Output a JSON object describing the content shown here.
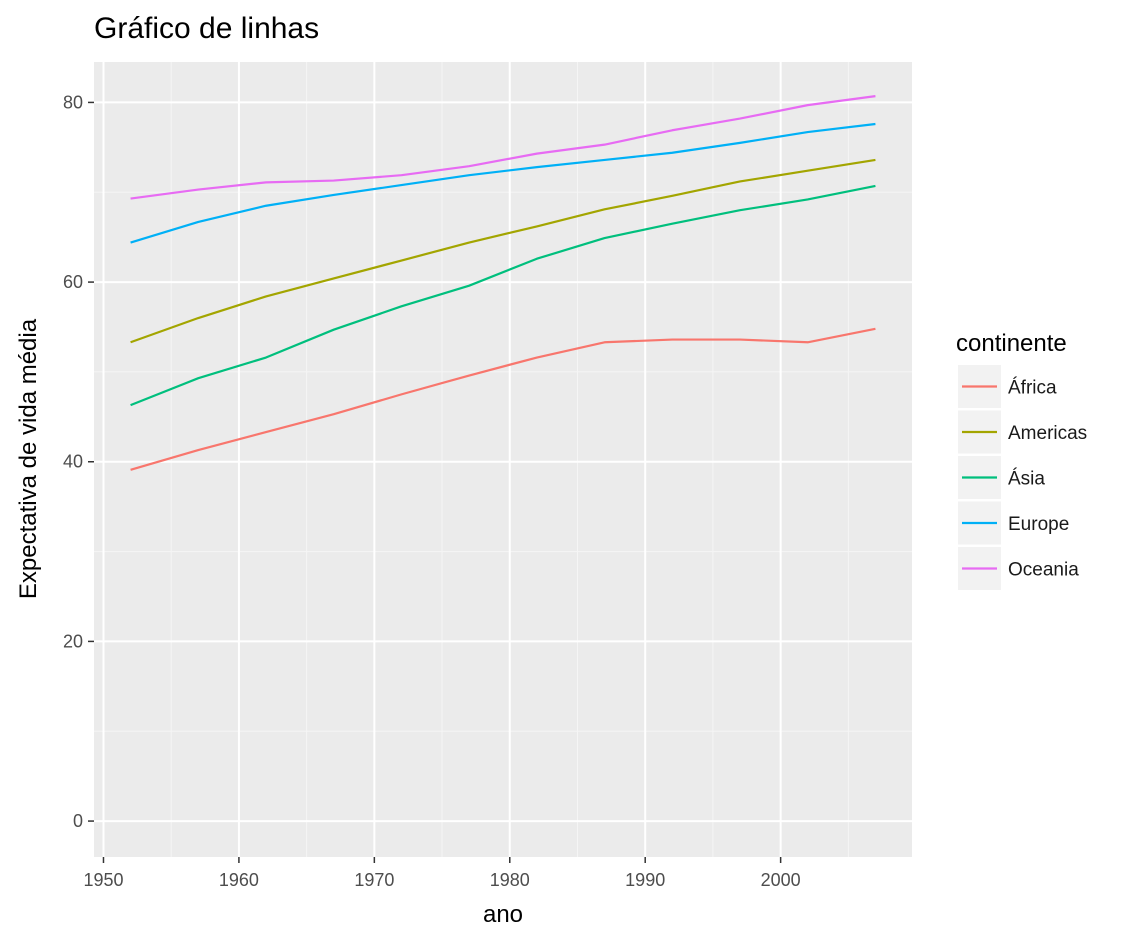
{
  "chart_data": {
    "type": "line",
    "title": "Gráfico de linhas",
    "xlabel": "ano",
    "ylabel": "Expectativa de vida média",
    "x": [
      1952,
      1957,
      1962,
      1967,
      1972,
      1977,
      1982,
      1987,
      1992,
      1997,
      2002,
      2007
    ],
    "xlim": [
      1949.3,
      2009.7
    ],
    "ylim": [
      -4,
      84.5
    ],
    "x_ticks": [
      1950,
      1960,
      1970,
      1980,
      1990,
      2000
    ],
    "x_tick_labels": [
      "1950",
      "1960",
      "1970",
      "1980",
      "1990",
      "2000"
    ],
    "y_ticks": [
      0,
      20,
      40,
      60,
      80
    ],
    "y_tick_labels": [
      "0",
      "20",
      "40",
      "60",
      "80"
    ],
    "grid": true,
    "legend": {
      "title": "continente",
      "position": "right"
    },
    "panel_color": "#ebebeb",
    "series": [
      {
        "name": "África",
        "color": "#f8766d",
        "values": [
          39.1,
          41.3,
          43.3,
          45.3,
          47.5,
          49.6,
          51.6,
          53.3,
          53.6,
          53.6,
          53.3,
          54.8
        ]
      },
      {
        "name": "Americas",
        "color": "#a3a500",
        "values": [
          53.3,
          56.0,
          58.4,
          60.4,
          62.4,
          64.4,
          66.2,
          68.1,
          69.6,
          71.2,
          72.4,
          73.6
        ]
      },
      {
        "name": "Ásia",
        "color": "#00bf7d",
        "values": [
          46.3,
          49.3,
          51.6,
          54.7,
          57.3,
          59.6,
          62.6,
          64.9,
          66.5,
          68.0,
          69.2,
          70.7
        ]
      },
      {
        "name": "Europe",
        "color": "#00b0f6",
        "values": [
          64.4,
          66.7,
          68.5,
          69.7,
          70.8,
          71.9,
          72.8,
          73.6,
          74.4,
          75.5,
          76.7,
          77.6
        ]
      },
      {
        "name": "Oceania",
        "color": "#e76bf3",
        "values": [
          69.3,
          70.3,
          71.1,
          71.3,
          71.9,
          72.9,
          74.3,
          75.3,
          76.9,
          78.2,
          79.7,
          80.7
        ]
      }
    ]
  }
}
